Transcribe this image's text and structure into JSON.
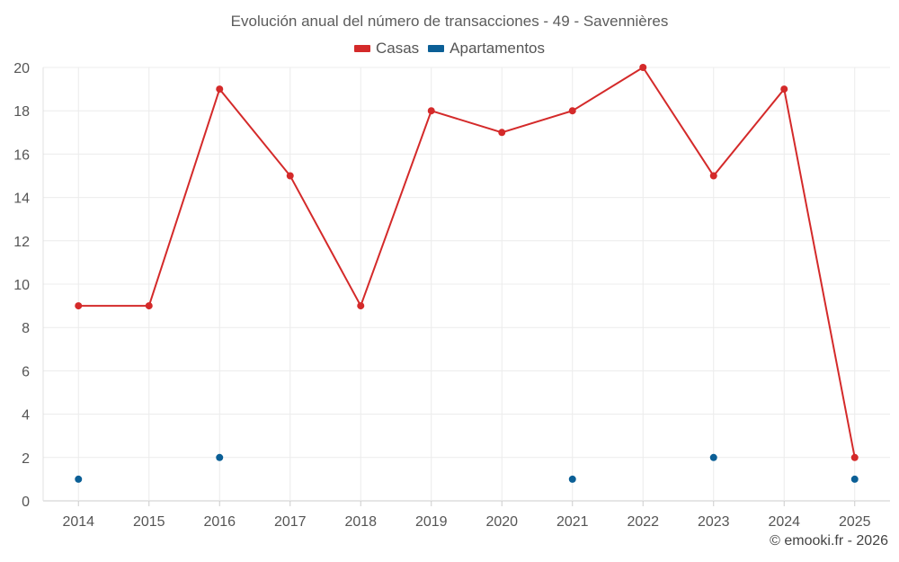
{
  "chart_data": {
    "type": "line",
    "title": "Evolución anual del número de transacciones - 49 - Savennières",
    "categories": [
      "2014",
      "2015",
      "2016",
      "2017",
      "2018",
      "2019",
      "2020",
      "2021",
      "2022",
      "2023",
      "2024",
      "2025"
    ],
    "series": [
      {
        "name": "Casas",
        "color": "#d42a2a",
        "values": [
          9,
          9,
          19,
          15,
          9,
          18,
          17,
          18,
          20,
          15,
          19,
          2
        ]
      },
      {
        "name": "Apartamentos",
        "color": "#0b5f96",
        "values": [
          1,
          null,
          2,
          null,
          null,
          null,
          null,
          1,
          null,
          2,
          null,
          1
        ]
      }
    ],
    "ylim": [
      0,
      20
    ],
    "yticks": [
      0,
      2,
      4,
      6,
      8,
      10,
      12,
      14,
      16,
      18,
      20
    ],
    "grid": true,
    "legend_position": "top-center"
  },
  "credit": "© emooki.fr - 2026"
}
